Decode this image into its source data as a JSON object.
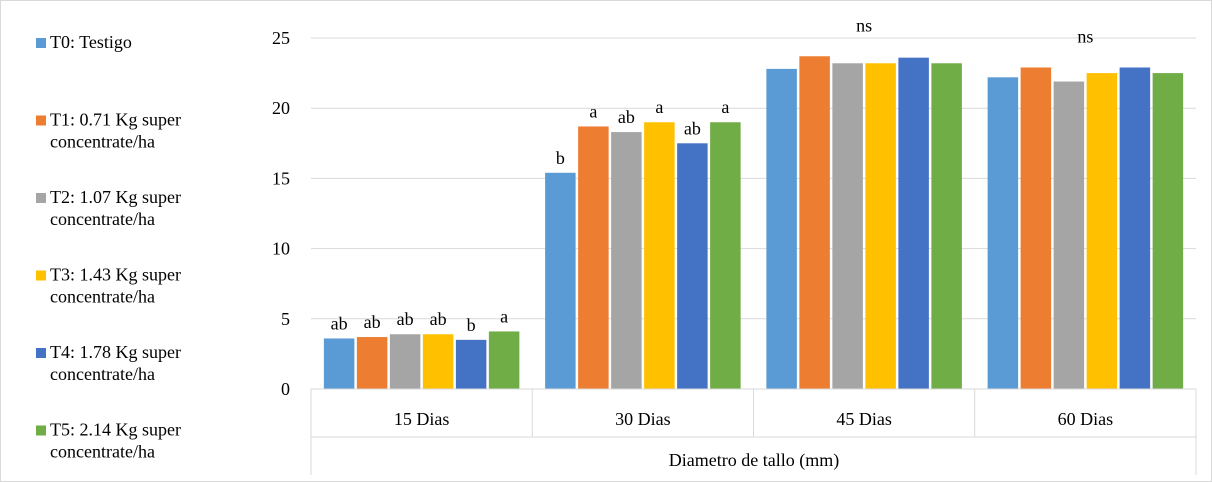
{
  "chart_data": {
    "type": "bar",
    "title": "",
    "xlabel": "Diametro de tallo (mm)",
    "ylabel": "",
    "ylim": [
      0,
      25
    ],
    "yticks": [
      0,
      5,
      10,
      15,
      20,
      25
    ],
    "grid": true,
    "legend_position": "left",
    "categories": [
      "15 Dias",
      "30 Dias",
      "45 Dias",
      "60 Dias"
    ],
    "series": [
      {
        "name": "T0: Testigo",
        "color": "#5B9BD5",
        "values": [
          3.6,
          15.4,
          22.8,
          22.2
        ]
      },
      {
        "name": "T1: 0.71 Kg super concentrate/ha",
        "color": "#ED7D31",
        "values": [
          3.7,
          18.7,
          23.7,
          22.9
        ]
      },
      {
        "name": "T2: 1.07 Kg super concentrate/ha",
        "color": "#A5A5A5",
        "values": [
          3.9,
          18.3,
          23.2,
          21.9
        ]
      },
      {
        "name": "T3: 1.43 Kg super concentrate/ha",
        "color": "#FFC000",
        "values": [
          3.9,
          19.0,
          23.2,
          22.5
        ]
      },
      {
        "name": "T4: 1.78 Kg super concentrate/ha",
        "color": "#4472C4",
        "values": [
          3.5,
          17.5,
          23.6,
          22.9
        ]
      },
      {
        "name": "T5: 2.14 Kg super concentrate/ha",
        "color": "#70AD47",
        "values": [
          4.1,
          19.0,
          23.2,
          22.5
        ]
      }
    ],
    "bar_labels": [
      [
        "ab",
        "ab",
        "ab",
        "ab",
        "b",
        "a"
      ],
      [
        "b",
        "a",
        "ab",
        "a",
        "ab",
        "a"
      ],
      [
        "",
        "",
        "",
        "",
        "",
        ""
      ],
      [
        "",
        "",
        "",
        "",
        "",
        ""
      ]
    ],
    "group_labels": [
      "",
      "",
      "ns",
      "ns"
    ]
  }
}
